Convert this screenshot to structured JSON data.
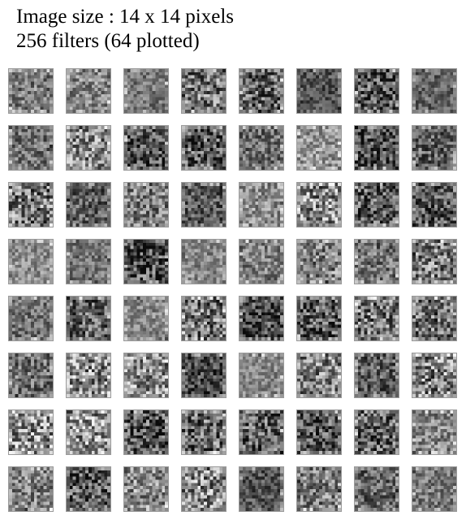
{
  "title": {
    "line1": "Image size : 14 x 14 pixels",
    "line2": "256 filters (64 plotted)"
  },
  "grid": {
    "rows": 8,
    "cols": 8,
    "filter_pixels": 14
  }
}
